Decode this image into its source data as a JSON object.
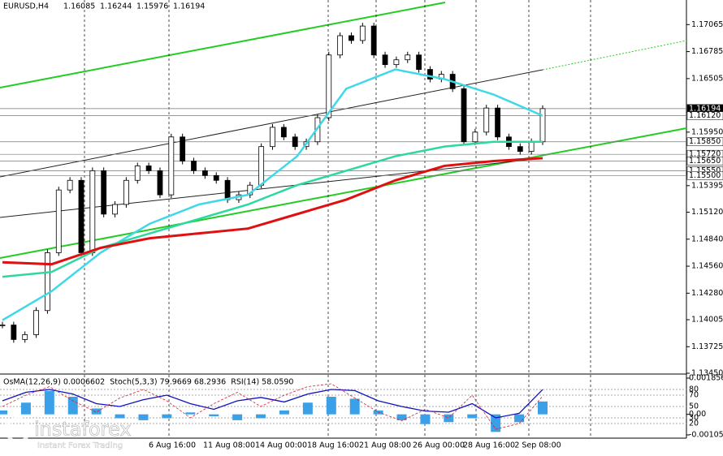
{
  "chart_data": {
    "type": "candlestick",
    "symbol": "EURUSD,H4",
    "ohlc": [
      1.16085,
      1.16244,
      1.15976,
      1.16194
    ],
    "close": [
      1.1395,
      1.138,
      1.1385,
      1.141,
      1.147,
      1.1535,
      1.1545,
      1.147,
      1.1555,
      1.151,
      1.152,
      1.1545,
      1.156,
      1.1555,
      1.153,
      1.159,
      1.1565,
      1.1555,
      1.155,
      1.1545,
      1.1525,
      1.153,
      1.154,
      1.158,
      1.16,
      1.159,
      1.158,
      1.1585,
      1.161,
      1.1675,
      1.1695,
      1.169,
      1.1705,
      1.1675,
      1.1665,
      1.167,
      1.1675,
      1.166,
      1.165,
      1.1655,
      1.164,
      1.1585,
      1.1595,
      1.162,
      1.159,
      1.158,
      1.1575,
      1.1585,
      1.16194
    ],
    "moving_averages": [
      {
        "color": "#3fd8e8",
        "values": [
          1.14,
          1.143,
          1.147,
          1.15,
          1.152,
          1.153,
          1.157,
          1.164,
          1.166,
          1.165,
          1.1634,
          1.1612
        ]
      },
      {
        "color": "#2bd9a0",
        "values": [
          1.1445,
          1.145,
          1.1475,
          1.149,
          1.1505,
          1.152,
          1.154,
          1.1555,
          1.157,
          1.158,
          1.1585,
          1.1585
        ]
      },
      {
        "color": "#e01010",
        "values": [
          1.146,
          1.1458,
          1.1475,
          1.1485,
          1.149,
          1.1495,
          1.151,
          1.1525,
          1.1545,
          1.156,
          1.1565,
          1.1568
        ]
      }
    ],
    "ylim": [
      1.1345,
      1.1732
    ],
    "yticks": [
      1.17065,
      1.16785,
      1.16505,
      {
        "value": 1.1595,
        "label": "1.15950"
      },
      1.15395,
      {
        "value": 1.1512,
        "label": "1.15120"
      },
      {
        "value": 1.1484,
        "label": "1.14840"
      },
      {
        "value": 1.1456,
        "label": "1.14560"
      },
      {
        "value": 1.1428,
        "label": "1.14280"
      },
      1.14005,
      1.13725,
      {
        "value": 1.1345,
        "label": "1.13450"
      }
    ],
    "levels": [
      1.16194,
      {
        "value": 1.1612,
        "label": "1.16120"
      },
      {
        "value": 1.1585,
        "label": "1.15850"
      },
      {
        "value": 1.1572,
        "label": "1.15720"
      },
      {
        "value": 1.1565,
        "label": "1.15650"
      },
      {
        "value": 1.1555,
        "label": "1.15550"
      },
      {
        "value": 1.155,
        "label": "1.15500"
      }
    ],
    "time_labels": [
      "6 Aug 16:00",
      "11 Aug 08:00",
      "14 Aug 00:00",
      "18 Aug 16:00",
      "21 Aug 08:00",
      "26 Aug 00:00",
      "28 Aug 16:00",
      "2 Sep 08:00"
    ],
    "indicator_labels": [
      "OsMA(12,26,9) 0.0006602",
      "Stoch(5,3,3) 79.9669 68.2936",
      "RSI(14) 58.0590"
    ],
    "osma": {
      "color": "#3aa0e8",
      "values": [
        0.0002,
        0.0006,
        0.0012,
        0.0009,
        0.0003,
        -0.0002,
        -0.0003,
        -0.0002,
        0.0001,
        -0.0001,
        -0.0003,
        -0.0002,
        0.0002,
        0.0006,
        0.0009,
        0.0008,
        0.0002,
        -0.0003,
        -0.0005,
        -0.0004,
        -0.0002,
        -0.0009,
        -0.0004,
        0.00066
      ],
      "ylim": [
        -0.001053,
        0.0018565
      ],
      "yticks": [
        0.0018565,
        {
          "value": 0,
          "label": "0.00"
        },
        -0.001053
      ]
    },
    "oscillators": [
      {
        "color": "#1010c0",
        "values": [
          60,
          75,
          80,
          72,
          55,
          50,
          62,
          70,
          55,
          45,
          60,
          66,
          58,
          72,
          80,
          78,
          60,
          50,
          42,
          40,
          55,
          30,
          38,
          79.9669
        ]
      },
      {
        "color": "#d02030",
        "values": [
          50,
          70,
          85,
          60,
          40,
          65,
          80,
          60,
          30,
          55,
          75,
          50,
          70,
          85,
          90,
          65,
          40,
          25,
          45,
          30,
          70,
          10,
          20,
          68.2936
        ]
      }
    ],
    "osc_ylim": [
      0,
      100
    ],
    "osc_yticks": [
      80,
      70,
      50,
      30,
      20
    ],
    "watermark": [
      "instaforex",
      "Instant Forex Trading"
    ]
  }
}
